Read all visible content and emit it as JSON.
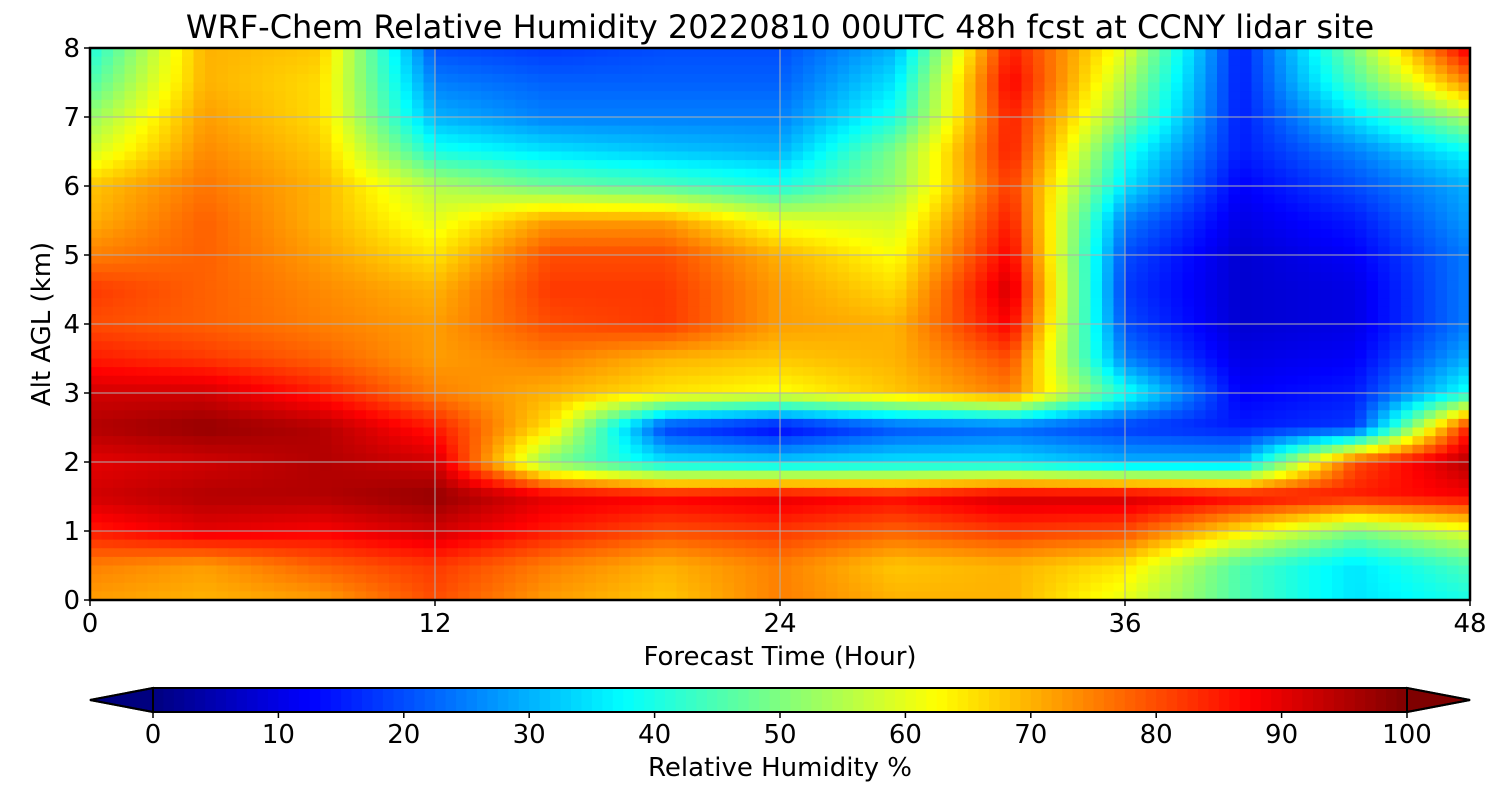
{
  "chart_data": {
    "type": "heatmap",
    "title": "WRF-Chem Relative Humidity 20220810 00UTC 48h fcst at CCNY lidar site",
    "xlabel": "Forecast Time (Hour)",
    "ylabel": "Alt AGL (km)",
    "xlim": [
      0,
      48
    ],
    "ylim": [
      0,
      8
    ],
    "x_ticks": [
      "0",
      "12",
      "24",
      "36",
      "48"
    ],
    "y_ticks": [
      "0",
      "1",
      "2",
      "3",
      "4",
      "5",
      "6",
      "7",
      "8"
    ],
    "grid": true,
    "colorbar": {
      "label": "Relative Humidity %",
      "orientation": "horizontal",
      "extend": "both",
      "range": [
        0,
        100
      ],
      "ticks": [
        "0",
        "10",
        "20",
        "30",
        "40",
        "50",
        "60",
        "70",
        "80",
        "90",
        "100"
      ],
      "colormap": "jet",
      "stops": [
        "#00007f",
        "#0000ff",
        "#007fff",
        "#00ffff",
        "#7fff7f",
        "#ffff00",
        "#ff7f00",
        "#ff0000",
        "#7f0000"
      ]
    },
    "x": [
      0,
      4,
      8,
      12,
      16,
      20,
      24,
      28,
      32,
      36,
      40,
      44,
      48
    ],
    "y": [
      0,
      0.5,
      1,
      1.5,
      2,
      2.5,
      3,
      3.5,
      4,
      4.5,
      5,
      5.5,
      6,
      6.5,
      7,
      7.5,
      8
    ],
    "z": [
      [
        72,
        70,
        72,
        80,
        72,
        68,
        75,
        70,
        70,
        60,
        45,
        35,
        40
      ],
      [
        75,
        72,
        78,
        82,
        75,
        70,
        75,
        68,
        70,
        65,
        45,
        35,
        45
      ],
      [
        85,
        90,
        88,
        92,
        85,
        80,
        82,
        78,
        82,
        80,
        65,
        50,
        60
      ],
      [
        92,
        95,
        95,
        98,
        90,
        88,
        90,
        87,
        92,
        92,
        88,
        85,
        88
      ],
      [
        90,
        92,
        95,
        92,
        50,
        35,
        33,
        35,
        35,
        30,
        30,
        80,
        95
      ],
      [
        95,
        98,
        95,
        85,
        65,
        18,
        12,
        20,
        22,
        18,
        15,
        18,
        85
      ],
      [
        92,
        92,
        85,
        75,
        70,
        65,
        62,
        68,
        75,
        40,
        12,
        15,
        40
      ],
      [
        85,
        82,
        78,
        72,
        75,
        70,
        68,
        70,
        80,
        25,
        10,
        12,
        30
      ],
      [
        80,
        78,
        75,
        72,
        80,
        82,
        72,
        70,
        88,
        20,
        8,
        10,
        25
      ],
      [
        82,
        78,
        74,
        70,
        82,
        82,
        72,
        66,
        92,
        18,
        8,
        10,
        25
      ],
      [
        75,
        78,
        72,
        65,
        80,
        80,
        70,
        62,
        88,
        20,
        8,
        12,
        25
      ],
      [
        70,
        78,
        70,
        60,
        72,
        72,
        60,
        58,
        85,
        25,
        10,
        15,
        28
      ],
      [
        68,
        76,
        70,
        55,
        48,
        45,
        40,
        52,
        82,
        35,
        12,
        20,
        30
      ],
      [
        58,
        74,
        68,
        40,
        35,
        32,
        30,
        50,
        85,
        40,
        15,
        25,
        38
      ],
      [
        52,
        72,
        66,
        30,
        25,
        25,
        25,
        40,
        85,
        50,
        15,
        35,
        55
      ],
      [
        45,
        70,
        66,
        25,
        22,
        22,
        22,
        35,
        88,
        55,
        15,
        45,
        75
      ],
      [
        40,
        70,
        68,
        20,
        18,
        20,
        20,
        30,
        85,
        60,
        15,
        50,
        90
      ]
    ]
  }
}
